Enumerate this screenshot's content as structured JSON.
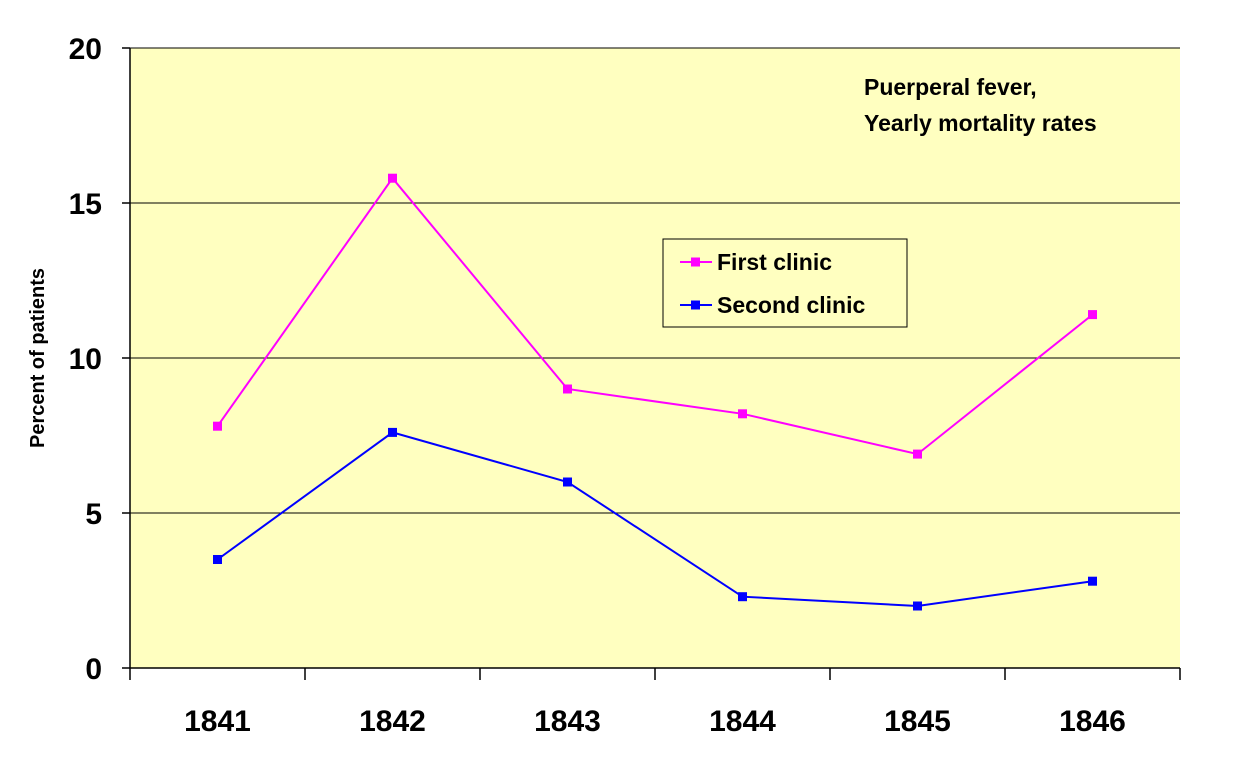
{
  "chart_data": {
    "type": "line",
    "title": "",
    "annotation": [
      "Puerperal fever,",
      "Yearly mortality rates"
    ],
    "xlabel": "",
    "ylabel": "Percent of patients",
    "categories": [
      "1841",
      "1842",
      "1843",
      "1844",
      "1845",
      "1846"
    ],
    "ylim": [
      0,
      20
    ],
    "yticks": [
      0,
      5,
      10,
      15,
      20
    ],
    "ytick_labels": [
      "0",
      "5",
      "10",
      "15",
      "20"
    ],
    "grid": "horizontal",
    "legend_position": "center-right",
    "plot_background": "#FFFFC0",
    "series": [
      {
        "name": "First clinic",
        "color": "#FF00FF",
        "marker": "square",
        "values": [
          7.8,
          15.8,
          9.0,
          8.2,
          6.9,
          11.4
        ]
      },
      {
        "name": "Second clinic",
        "color": "#0000FF",
        "marker": "square",
        "values": [
          3.5,
          7.6,
          6.0,
          2.3,
          2.0,
          2.8
        ]
      }
    ]
  }
}
